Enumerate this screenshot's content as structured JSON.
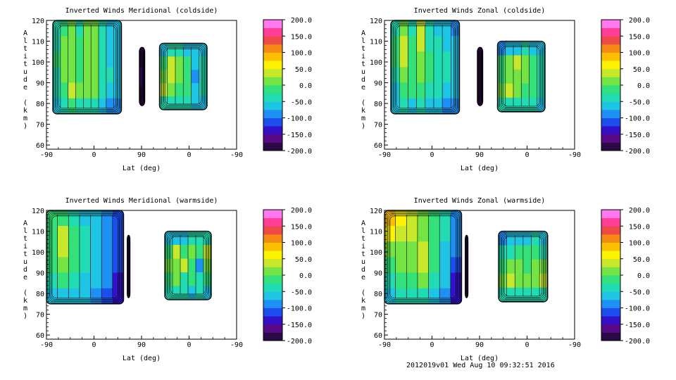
{
  "figure": {
    "footer": "2012019v01  Wed Aug 10 09:32:51 2016"
  },
  "panels": [
    {
      "id": "p1",
      "title": "Inverted Winds Meridional (coldside)",
      "ylabel": "Altitude (km)",
      "xlabel": "Lat (deg)",
      "xticks": [
        "-90",
        "0",
        "90",
        "0",
        "-90"
      ],
      "yticks": [
        "60",
        "70",
        "80",
        "90",
        "100",
        "110",
        "120"
      ],
      "colorbar_ticks": [
        "200.0",
        "150.0",
        "100.0",
        "50.0",
        "0.0",
        "-50.0",
        "-100.0",
        "-150.0",
        "-200.0"
      ]
    },
    {
      "id": "p2",
      "title": "Inverted Winds Zonal (coldside)",
      "ylabel": "Altitude (km)",
      "xlabel": "Lat (deg)",
      "xticks": [
        "-90",
        "0",
        "90",
        "0",
        "-90"
      ],
      "yticks": [
        "60",
        "70",
        "80",
        "90",
        "100",
        "110",
        "120"
      ],
      "colorbar_ticks": [
        "200.0",
        "150.0",
        "100.0",
        "50.0",
        "0.0",
        "-50.0",
        "-100.0",
        "-150.0",
        "-200.0"
      ]
    },
    {
      "id": "p3",
      "title": "Inverted Winds Meridional (warmside)",
      "ylabel": "Altitude (km)",
      "xlabel": "Lat (deg)",
      "xticks": [
        "-90",
        "0",
        "90",
        "0",
        "-90"
      ],
      "yticks": [
        "60",
        "70",
        "80",
        "90",
        "100",
        "110",
        "120"
      ],
      "colorbar_ticks": [
        "200.0",
        "150.0",
        "100.0",
        "50.0",
        "0.0",
        "-50.0",
        "-100.0",
        "-150.0",
        "-200.0"
      ]
    },
    {
      "id": "p4",
      "title": "Inverted Winds Zonal (warmside)",
      "ylabel": "Altitude (km)",
      "xlabel": "Lat (deg)",
      "xticks": [
        "-90",
        "0",
        "90",
        "0",
        "-90"
      ],
      "yticks": [
        "60",
        "70",
        "80",
        "90",
        "100",
        "110",
        "120"
      ],
      "colorbar_ticks": [
        "200.0",
        "150.0",
        "100.0",
        "50.0",
        "0.0",
        "-50.0",
        "-100.0",
        "-150.0",
        "-200.0"
      ]
    }
  ],
  "chart_data": [
    {
      "type": "heatmap",
      "title": "Inverted Winds Meridional (coldside)",
      "xlabel": "Lat (deg)",
      "ylabel": "Altitude (km)",
      "xlim": [
        -90,
        90,
        -90
      ],
      "ylim": [
        58,
        120
      ],
      "colorbar_range": [
        -200,
        200
      ],
      "colorbar_levels": [
        -200,
        -175,
        -150,
        -125,
        -100,
        -75,
        -50,
        -25,
        0,
        25,
        50,
        75,
        100,
        125,
        150,
        175,
        200
      ],
      "segments": [
        {
          "leg": "ascending",
          "lat_range": [
            -78,
            52
          ],
          "alt_range": [
            75,
            120
          ],
          "values": [
            [
              -45,
              -5,
              10,
              -45,
              0,
              20,
              -35,
              -70,
              -75
            ],
            [
              -30,
              15,
              5,
              -20,
              10,
              15,
              -40,
              -60,
              -70
            ],
            [
              -20,
              20,
              0,
              -10,
              15,
              20,
              -45,
              -55,
              -60
            ],
            [
              -40,
              5,
              15,
              -10,
              20,
              10,
              -30,
              -50,
              -55
            ],
            [
              -50,
              -10,
              25,
              5,
              15,
              5,
              -35,
              -55,
              -60
            ],
            [
              -70,
              -40,
              -20,
              -40,
              -30,
              -40,
              -60,
              -80,
              -90
            ]
          ]
        },
        {
          "leg": "ascending",
          "lat_range": [
            86,
            96
          ],
          "alt_range": [
            79,
            107
          ],
          "values": [
            [
              -180,
              -160
            ],
            [
              -170,
              -150
            ],
            [
              -180,
              -160
            ]
          ]
        },
        {
          "leg": "descending",
          "lat_range": [
            124,
            214
          ],
          "alt_range": [
            77,
            109
          ],
          "values": [
            [
              -70,
              -40,
              -45,
              -60,
              -65,
              -75
            ],
            [
              -10,
              30,
              10,
              -20,
              -60,
              -50
            ],
            [
              15,
              25,
              5,
              -10,
              -80,
              -40
            ],
            [
              25,
              15,
              -5,
              -25,
              -55,
              -45
            ],
            [
              -40,
              -50,
              -35,
              -45,
              -60,
              -70
            ]
          ]
        }
      ]
    },
    {
      "type": "heatmap",
      "title": "Inverted Winds Zonal (coldside)",
      "xlabel": "Lat (deg)",
      "ylabel": "Altitude (km)",
      "xlim": [
        -90,
        90,
        -90
      ],
      "ylim": [
        58,
        120
      ],
      "colorbar_range": [
        -200,
        200
      ],
      "colorbar_levels": [
        -200,
        -175,
        -150,
        -125,
        -100,
        -75,
        -50,
        -25,
        0,
        25,
        50,
        75,
        100,
        125,
        150,
        175,
        200
      ],
      "segments": [
        {
          "leg": "ascending",
          "lat_range": [
            -78,
            52
          ],
          "alt_range": [
            75,
            120
          ],
          "values": [
            [
              -35,
              20,
              -30,
              30,
              -40,
              -60,
              -70,
              -80
            ],
            [
              -25,
              35,
              -20,
              25,
              -30,
              -45,
              -55,
              -70
            ],
            [
              -20,
              30,
              -15,
              20,
              -20,
              -40,
              -50,
              -65
            ],
            [
              -40,
              15,
              -10,
              10,
              -25,
              -35,
              -50,
              -60
            ],
            [
              -55,
              -5,
              -20,
              -10,
              -35,
              -45,
              -60,
              -70
            ],
            [
              -75,
              -50,
              -55,
              -50,
              -60,
              -70,
              -85,
              -95
            ]
          ]
        },
        {
          "leg": "ascending",
          "lat_range": [
            86,
            96
          ],
          "alt_range": [
            79,
            107
          ],
          "values": [
            [
              -190,
              -170
            ],
            [
              -180,
              -165
            ],
            [
              -190,
              -170
            ]
          ]
        },
        {
          "leg": "descending",
          "lat_range": [
            124,
            214
          ],
          "alt_range": [
            76,
            110
          ],
          "values": [
            [
              -80,
              -60,
              -55,
              -50,
              -60,
              -75
            ],
            [
              -20,
              20,
              25,
              15,
              -5,
              -35
            ],
            [
              -5,
              15,
              20,
              5,
              -10,
              -40
            ],
            [
              10,
              25,
              15,
              -5,
              -20,
              -45
            ],
            [
              -45,
              -40,
              -35,
              -40,
              -50,
              -65
            ]
          ]
        }
      ]
    },
    {
      "type": "heatmap",
      "title": "Inverted Winds Meridional (warmside)",
      "xlabel": "Lat (deg)",
      "ylabel": "Altitude (km)",
      "xlim": [
        -90,
        90,
        -90
      ],
      "ylim": [
        58,
        120
      ],
      "colorbar_range": [
        -200,
        200
      ],
      "colorbar_levels": [
        -200,
        -175,
        -150,
        -125,
        -100,
        -75,
        -50,
        -25,
        0,
        25,
        50,
        75,
        100,
        125,
        150,
        175,
        200
      ],
      "segments": [
        {
          "leg": "ascending",
          "lat_range": [
            -90,
            56
          ],
          "alt_range": [
            75,
            120
          ],
          "values": [
            [
              -25,
              -15,
              -35,
              -60,
              -70,
              -90,
              -120
            ],
            [
              -10,
              25,
              -20,
              -45,
              -65,
              -85,
              -110
            ],
            [
              -15,
              35,
              -5,
              -30,
              -55,
              -80,
              -115
            ],
            [
              -20,
              10,
              -15,
              -40,
              -55,
              -90,
              -125
            ],
            [
              -40,
              -20,
              -35,
              -55,
              -75,
              -100,
              -130
            ],
            [
              -70,
              -60,
              -65,
              -75,
              -90,
              -110,
              -140
            ]
          ]
        },
        {
          "leg": "ascending",
          "lat_range": [
            63,
            68
          ],
          "alt_range": [
            78,
            108
          ],
          "values": [
            [
              -190
            ],
            [
              -185
            ],
            [
              -190
            ]
          ]
        },
        {
          "leg": "descending",
          "lat_range": [
            134,
            222
          ],
          "alt_range": [
            77,
            110
          ],
          "values": [
            [
              -75,
              -60,
              -55,
              -50,
              -45,
              -50
            ],
            [
              -20,
              35,
              -10,
              5,
              -25,
              45
            ],
            [
              5,
              15,
              25,
              -15,
              -80,
              20
            ],
            [
              -10,
              20,
              -30,
              -5,
              -35,
              -15
            ],
            [
              -45,
              -40,
              -50,
              -55,
              -50,
              -60
            ]
          ]
        }
      ]
    },
    {
      "type": "heatmap",
      "title": "Inverted Winds Zonal (warmside)",
      "xlabel": "Lat (deg)",
      "ylabel": "Altitude (km)",
      "xlim": [
        -90,
        90,
        -90
      ],
      "ylim": [
        58,
        120
      ],
      "colorbar_range": [
        -200,
        200
      ],
      "colorbar_levels": [
        -200,
        -175,
        -150,
        -125,
        -100,
        -75,
        -50,
        -25,
        0,
        25,
        50,
        75,
        100,
        125,
        150,
        175,
        200
      ],
      "segments": [
        {
          "leg": "ascending",
          "lat_range": [
            -90,
            56
          ],
          "alt_range": [
            75,
            120
          ],
          "values": [
            [
              95,
              60,
              40,
              20,
              -10,
              -40,
              -80
            ],
            [
              50,
              40,
              25,
              15,
              -15,
              -50,
              -90
            ],
            [
              10,
              20,
              10,
              25,
              -20,
              -55,
              -100
            ],
            [
              -10,
              5,
              15,
              30,
              -25,
              -60,
              -110
            ],
            [
              -30,
              -20,
              -10,
              0,
              -40,
              -75,
              -130
            ],
            [
              -60,
              -50,
              -45,
              -50,
              -70,
              -95,
              -150
            ]
          ]
        },
        {
          "leg": "ascending",
          "lat_range": [
            63,
            68
          ],
          "alt_range": [
            78,
            108
          ],
          "values": [
            [
              -195
            ],
            [
              -190
            ],
            [
              -195
            ]
          ]
        },
        {
          "leg": "descending",
          "lat_range": [
            126,
            219
          ],
          "alt_range": [
            76,
            110
          ],
          "values": [
            [
              -80,
              -70,
              -60,
              -55,
              -50,
              -60
            ],
            [
              -40,
              -30,
              -25,
              -20,
              -25,
              -35
            ],
            [
              -5,
              5,
              0,
              -5,
              0,
              5
            ],
            [
              20,
              25,
              15,
              10,
              20,
              25
            ],
            [
              -35,
              -30,
              -30,
              -35,
              -40,
              -45
            ]
          ]
        }
      ]
    }
  ]
}
